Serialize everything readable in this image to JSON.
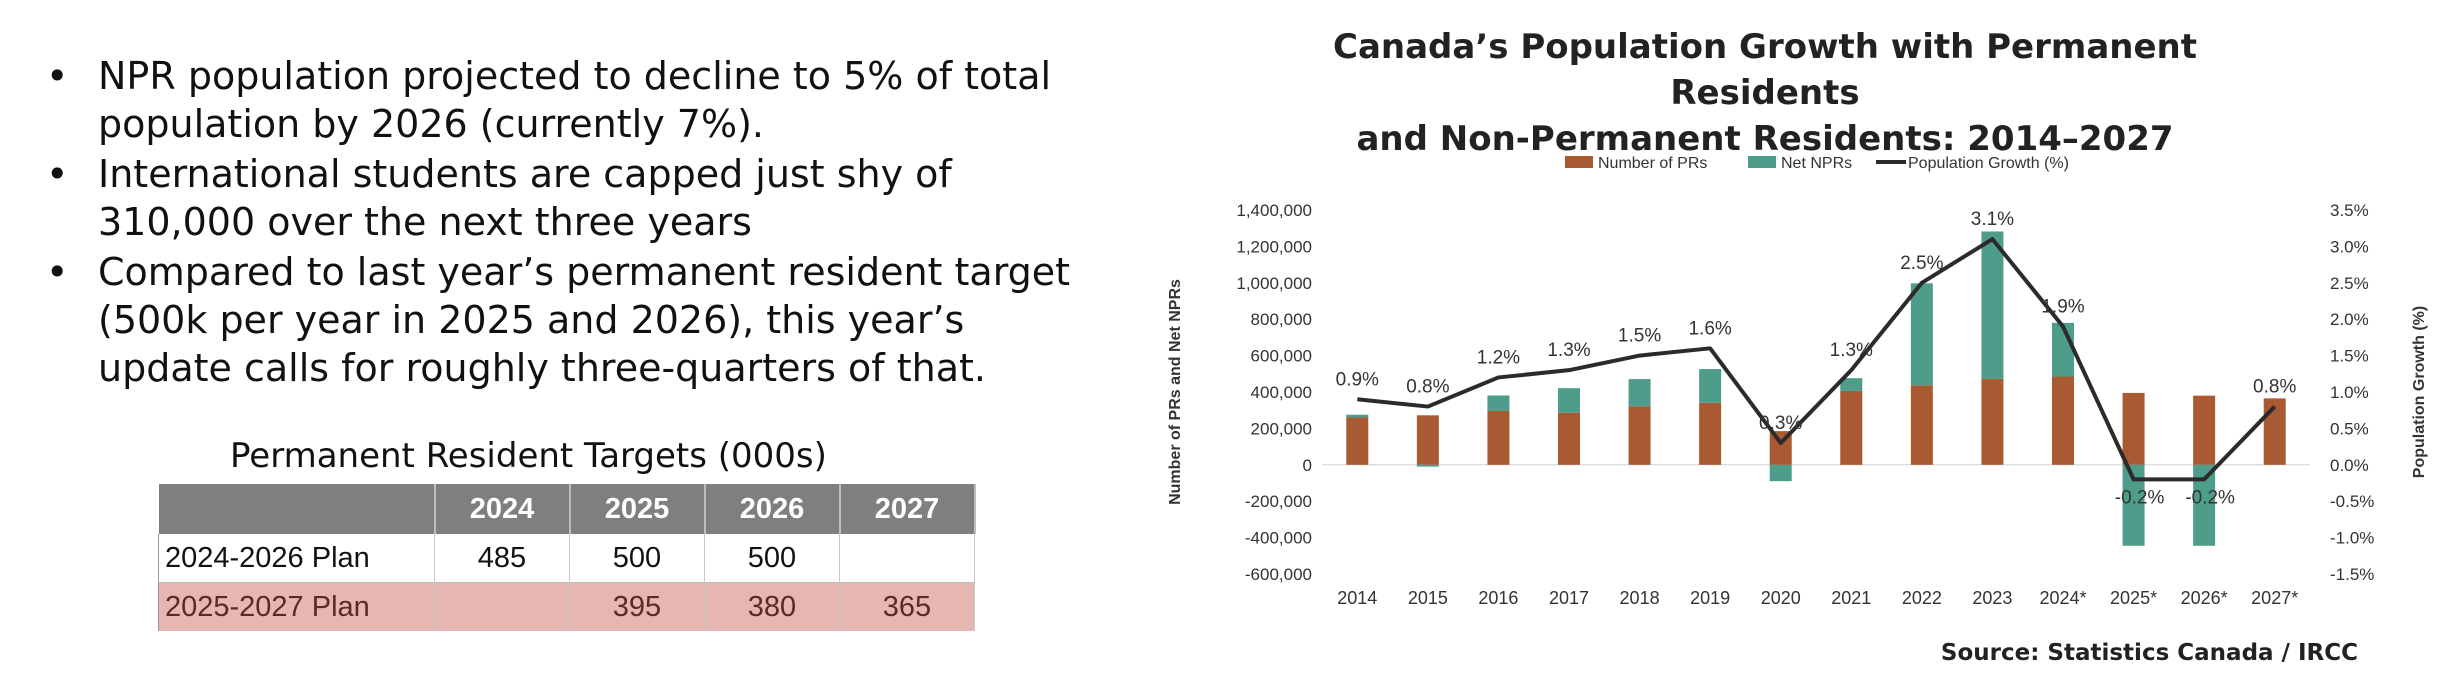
{
  "bullets": [
    "NPR population projected to decline to 5% of total population by 2026 (currently 7%).",
    "International students are capped just shy of 310,000 over the next three years",
    "Compared to last year’s permanent resident target (500k per year in 2025 and 2026), this year’s update calls for roughly three-quarters of that."
  ],
  "bullet_glyph": "•",
  "targets_table": {
    "title": "Permanent Resident Targets (000s)",
    "columns": [
      "",
      "2024",
      "2025",
      "2026",
      "2027"
    ],
    "rows": [
      [
        "2024-2026 Plan",
        "485",
        "500",
        "500",
        ""
      ],
      [
        "2025-2027 Plan",
        "",
        "395",
        "380",
        "365"
      ]
    ],
    "highlight_color": "#e6b6b2"
  },
  "chart_data": {
    "type": "bar",
    "title_lines": [
      "Canada’s Population Growth with Permanent Residents",
      "and Non-Permanent Residents: 2014–2027"
    ],
    "categories": [
      "2014",
      "2015",
      "2016",
      "2017",
      "2018",
      "2019",
      "2020",
      "2021",
      "2022",
      "2023",
      "2024*",
      "2025*",
      "2026*",
      "2027*"
    ],
    "series": [
      {
        "name": "Number of PRs",
        "kind": "bar",
        "color": "#a85a32",
        "values": [
          260000,
          272000,
          296000,
          286000,
          321000,
          341000,
          185000,
          406000,
          437000,
          472000,
          485000,
          395000,
          380000,
          365000
        ]
      },
      {
        "name": "Net NPRs",
        "kind": "bar",
        "color": "#4e9c8a",
        "values": [
          15000,
          -10000,
          85000,
          135000,
          150000,
          185000,
          -90000,
          70000,
          560000,
          810000,
          295000,
          -445000,
          -445000,
          0
        ]
      },
      {
        "name": "Population Growth (%)",
        "kind": "line",
        "color": "#2b2b2b",
        "axis": "right",
        "values": [
          0.9,
          0.8,
          1.2,
          1.3,
          1.5,
          1.6,
          0.3,
          1.3,
          2.5,
          3.1,
          1.9,
          -0.2,
          -0.2,
          0.8
        ]
      }
    ],
    "line_labels": [
      "0.9%",
      "0.8%",
      "1.2%",
      "1.3%",
      "1.5%",
      "1.6%",
      "0.3%",
      "1.3%",
      "2.5%",
      "3.1%",
      "1.9%",
      "-0.2%",
      "-0.2%",
      "0.8%"
    ],
    "ylabel": "Number of PRs and Net NPRs",
    "y2label": "Population Growth (%)",
    "ylim": [
      -600000,
      1400000
    ],
    "y2lim": [
      -1.5,
      3.5
    ],
    "yticks": [
      "1,400,000",
      "1,200,000",
      "1,000,000",
      "800,000",
      "600,000",
      "400,000",
      "200,000",
      "0",
      "-200,000",
      "-400,000",
      "-600,000"
    ],
    "ytick_values": [
      1400000,
      1200000,
      1000000,
      800000,
      600000,
      400000,
      200000,
      0,
      -200000,
      -400000,
      -600000
    ],
    "y2ticks": [
      "3.5%",
      "3.0%",
      "2.5%",
      "2.0%",
      "1.5%",
      "1.0%",
      "0.5%",
      "0.0%",
      "-0.5%",
      "-1.0%",
      "-1.5%"
    ],
    "y2tick_values": [
      3.5,
      3.0,
      2.5,
      2.0,
      1.5,
      1.0,
      0.5,
      0.0,
      -0.5,
      -1.0,
      -1.5
    ],
    "grid": false,
    "legend": "top-center"
  },
  "source": "Source: Statistics Canada / IRCC"
}
